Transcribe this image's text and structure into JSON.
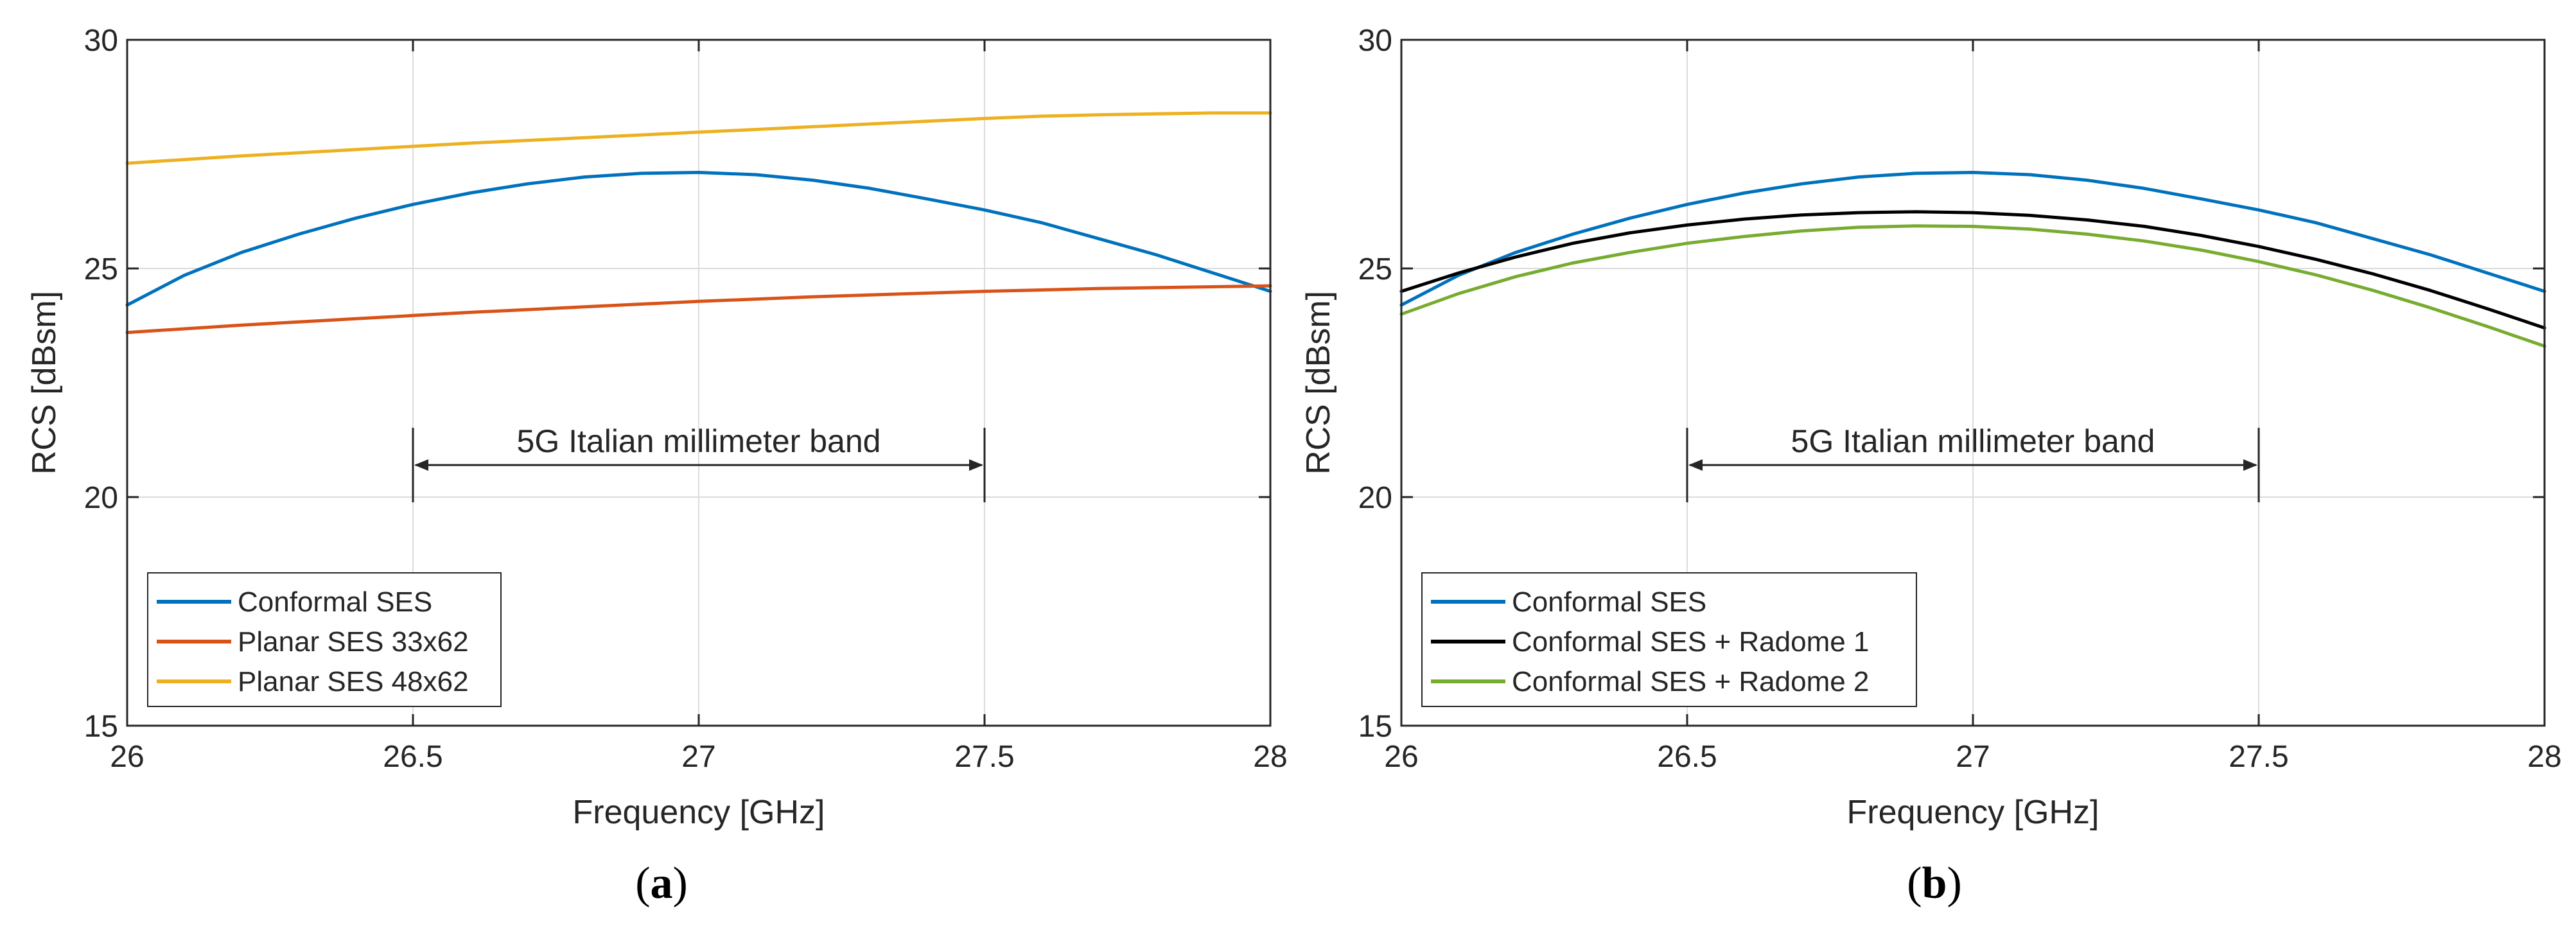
{
  "chart_data": [
    {
      "type": "line",
      "panel_label_prefix": "(",
      "panel_label_letter": "a",
      "panel_label_suffix": ")",
      "xlabel": "Frequency [GHz]",
      "ylabel": "RCS [dBsm]",
      "xlim": [
        26,
        28
      ],
      "ylim": [
        15,
        30
      ],
      "xticks": [
        26,
        26.5,
        27,
        27.5,
        28
      ],
      "xtick_labels": [
        "26",
        "26.5",
        "27",
        "27.5",
        "28"
      ],
      "yticks": [
        15,
        20,
        25,
        30
      ],
      "ytick_labels": [
        "15",
        "20",
        "25",
        "30"
      ],
      "grid": true,
      "legend_location": "bottom-left",
      "annotation": {
        "text": "5G Italian millimeter band",
        "x_start": 26.5,
        "x_end": 27.5,
        "y": 20.7
      },
      "x": [
        26,
        26.1,
        26.2,
        26.3,
        26.4,
        26.5,
        26.6,
        26.7,
        26.8,
        26.9,
        27,
        27.1,
        27.2,
        27.3,
        27.4,
        27.5,
        27.6,
        27.7,
        27.8,
        27.9,
        28
      ],
      "series": [
        {
          "name": "Conformal SES",
          "color": "#0072BD",
          "values": [
            24.2,
            24.85,
            25.35,
            25.75,
            26.1,
            26.4,
            26.65,
            26.85,
            27.0,
            27.08,
            27.1,
            27.05,
            26.93,
            26.75,
            26.52,
            26.28,
            26.0,
            25.65,
            25.3,
            24.9,
            24.5
          ]
        },
        {
          "name": "Planar SES 33x62",
          "color": "#D95319",
          "values": [
            23.6,
            23.68,
            23.76,
            23.83,
            23.9,
            23.97,
            24.04,
            24.1,
            24.16,
            24.22,
            24.28,
            24.33,
            24.38,
            24.42,
            24.46,
            24.5,
            24.53,
            24.56,
            24.58,
            24.6,
            24.62
          ]
        },
        {
          "name": "Planar SES 48x62",
          "color": "#EDB120",
          "values": [
            27.3,
            27.38,
            27.46,
            27.53,
            27.6,
            27.67,
            27.74,
            27.8,
            27.86,
            27.92,
            27.98,
            28.04,
            28.1,
            28.16,
            28.22,
            28.28,
            28.33,
            28.36,
            28.38,
            28.4,
            28.4
          ]
        }
      ]
    },
    {
      "type": "line",
      "panel_label_prefix": "(",
      "panel_label_letter": "b",
      "panel_label_suffix": ")",
      "xlabel": "Frequency [GHz]",
      "ylabel": "RCS [dBsm]",
      "xlim": [
        26,
        28
      ],
      "ylim": [
        15,
        30
      ],
      "xticks": [
        26,
        26.5,
        27,
        27.5,
        28
      ],
      "xtick_labels": [
        "26",
        "26.5",
        "27",
        "27.5",
        "28"
      ],
      "yticks": [
        15,
        20,
        25,
        30
      ],
      "ytick_labels": [
        "15",
        "20",
        "25",
        "30"
      ],
      "grid": true,
      "legend_location": "bottom-left",
      "annotation": {
        "text": "5G Italian millimeter band",
        "x_start": 26.5,
        "x_end": 27.5,
        "y": 20.7
      },
      "x": [
        26,
        26.1,
        26.2,
        26.3,
        26.4,
        26.5,
        26.6,
        26.7,
        26.8,
        26.9,
        27,
        27.1,
        27.2,
        27.3,
        27.4,
        27.5,
        27.6,
        27.7,
        27.8,
        27.9,
        28
      ],
      "series": [
        {
          "name": "Conformal SES",
          "color": "#0072BD",
          "values": [
            24.2,
            24.85,
            25.35,
            25.75,
            26.1,
            26.4,
            26.65,
            26.85,
            27.0,
            27.08,
            27.1,
            27.05,
            26.93,
            26.75,
            26.52,
            26.28,
            26.0,
            25.65,
            25.3,
            24.9,
            24.5
          ]
        },
        {
          "name": "Conformal SES + Radome 1",
          "color": "#000000",
          "values": [
            24.5,
            24.9,
            25.25,
            25.55,
            25.78,
            25.95,
            26.08,
            26.17,
            26.22,
            26.24,
            26.22,
            26.16,
            26.06,
            25.92,
            25.72,
            25.48,
            25.2,
            24.88,
            24.52,
            24.12,
            23.7
          ]
        },
        {
          "name": "Conformal SES + Radome 2",
          "color": "#77AC30",
          "values": [
            24.0,
            24.45,
            24.82,
            25.12,
            25.35,
            25.55,
            25.7,
            25.82,
            25.9,
            25.93,
            25.92,
            25.86,
            25.75,
            25.6,
            25.4,
            25.15,
            24.86,
            24.52,
            24.14,
            23.73,
            23.3
          ]
        }
      ]
    }
  ]
}
